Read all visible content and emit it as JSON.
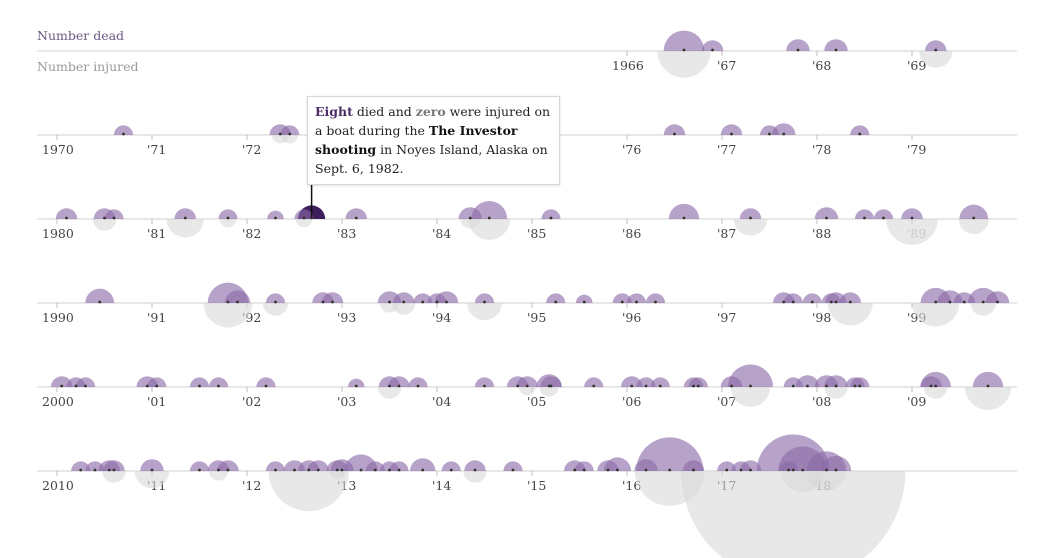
{
  "legend": {
    "dead_label": "Number dead",
    "injured_label": "Number injured"
  },
  "tooltip": {
    "dead_count": "Eight",
    "text_1": " died and ",
    "injured_count": "zero",
    "text_2": " were injured on a boat during the ",
    "event_name": "The Investor shooting",
    "text_3": " in Noyes Island, Alaska on Sept. 6, 1982."
  },
  "colors": {
    "dead": "#8a6aa8",
    "injured": "#d8d8d8",
    "highlight": "#3d1f5c",
    "axis": "#d0d0d0",
    "tick_text": "#444444"
  },
  "chart_data": {
    "type": "scatter",
    "encoding": "bubble timeline; circle area proportional to count; dead drawn above baseline, injured below",
    "rows": [
      {
        "decade": 1960,
        "first_year": 1966,
        "tick_labels": [
          "1966",
          "'67",
          "'68",
          "'69"
        ]
      },
      {
        "decade": 1970,
        "first_year": 1970,
        "tick_labels": [
          "1970",
          "'71",
          "'72",
          "'73",
          "'74",
          "'75",
          "'76",
          "'77",
          "'78",
          "'79"
        ]
      },
      {
        "decade": 1980,
        "first_year": 1980,
        "tick_labels": [
          "1980",
          "'81",
          "'82",
          "'83",
          "'84",
          "'85",
          "'86",
          "'87",
          "'88",
          "'89"
        ]
      },
      {
        "decade": 1990,
        "first_year": 1990,
        "tick_labels": [
          "1990",
          "'91",
          "'92",
          "'93",
          "'94",
          "'95",
          "'96",
          "'97",
          "'98",
          "'99"
        ]
      },
      {
        "decade": 2000,
        "first_year": 2000,
        "tick_labels": [
          "2000",
          "'01",
          "'02",
          "'03",
          "'04",
          "'05",
          "'06",
          "'07",
          "'08",
          "'09"
        ]
      },
      {
        "decade": 2010,
        "first_year": 2010,
        "tick_labels": [
          "2010",
          "'11",
          "'12",
          "'13",
          "'14",
          "'15",
          "'16",
          "'17",
          "'18"
        ]
      }
    ],
    "events": [
      {
        "year": 1966.6,
        "dead": 18,
        "injured": 31
      },
      {
        "year": 1966.9,
        "dead": 5,
        "injured": 0
      },
      {
        "year": 1967.8,
        "dead": 6,
        "injured": 0
      },
      {
        "year": 1968.2,
        "dead": 6,
        "injured": 0
      },
      {
        "year": 1969.25,
        "dead": 5,
        "injured": 12
      },
      {
        "year": 1970.7,
        "dead": 4,
        "injured": 0
      },
      {
        "year": 1972.35,
        "dead": 5,
        "injured": 3
      },
      {
        "year": 1972.45,
        "dead": 4,
        "injured": 3
      },
      {
        "year": 1976.5,
        "dead": 5,
        "injured": 0
      },
      {
        "year": 1977.1,
        "dead": 5,
        "injured": 0
      },
      {
        "year": 1977.5,
        "dead": 4,
        "injured": 0
      },
      {
        "year": 1977.65,
        "dead": 6,
        "injured": 0
      },
      {
        "year": 1978.45,
        "dead": 4,
        "injured": 0
      },
      {
        "year": 1980.1,
        "dead": 5,
        "injured": 0
      },
      {
        "year": 1980.5,
        "dead": 5,
        "injured": 6
      },
      {
        "year": 1980.6,
        "dead": 4,
        "injured": 0
      },
      {
        "year": 1981.35,
        "dead": 5,
        "injured": 15
      },
      {
        "year": 1981.8,
        "dead": 4,
        "injured": 3
      },
      {
        "year": 1982.3,
        "dead": 3,
        "injured": 0
      },
      {
        "year": 1982.6,
        "dead": 4,
        "injured": 3
      },
      {
        "year": 1982.68,
        "dead": 8,
        "injured": 0,
        "highlight": true
      },
      {
        "year": 1983.15,
        "dead": 5,
        "injured": 0
      },
      {
        "year": 1984.35,
        "dead": 6,
        "injured": 4
      },
      {
        "year": 1984.55,
        "dead": 14,
        "injured": 19
      },
      {
        "year": 1985.2,
        "dead": 4,
        "injured": 0
      },
      {
        "year": 1986.6,
        "dead": 10,
        "injured": 0
      },
      {
        "year": 1987.3,
        "dead": 5,
        "injured": 12
      },
      {
        "year": 1988.1,
        "dead": 6,
        "injured": 0
      },
      {
        "year": 1988.5,
        "dead": 4,
        "injured": 0
      },
      {
        "year": 1988.7,
        "dead": 4,
        "injured": 0
      },
      {
        "year": 1989.0,
        "dead": 5,
        "injured": 29
      },
      {
        "year": 1989.65,
        "dead": 9,
        "injured": 10
      },
      {
        "year": 1990.45,
        "dead": 9,
        "injured": 0
      },
      {
        "year": 1991.8,
        "dead": 18,
        "injured": 26
      },
      {
        "year": 1991.9,
        "dead": 7,
        "injured": 0
      },
      {
        "year": 1992.3,
        "dead": 4,
        "injured": 7
      },
      {
        "year": 1992.8,
        "dead": 5,
        "injured": 0
      },
      {
        "year": 1992.9,
        "dead": 5,
        "injured": 0
      },
      {
        "year": 1993.5,
        "dead": 6,
        "injured": 4
      },
      {
        "year": 1993.65,
        "dead": 5,
        "injured": 6
      },
      {
        "year": 1993.85,
        "dead": 4,
        "injured": 0
      },
      {
        "year": 1994.0,
        "dead": 4,
        "injured": 0
      },
      {
        "year": 1994.1,
        "dead": 6,
        "injured": 0
      },
      {
        "year": 1994.5,
        "dead": 4,
        "injured": 13
      },
      {
        "year": 1995.25,
        "dead": 4,
        "injured": 0
      },
      {
        "year": 1995.55,
        "dead": 3,
        "injured": 0
      },
      {
        "year": 1995.95,
        "dead": 4,
        "injured": 0
      },
      {
        "year": 1996.1,
        "dead": 4,
        "injured": 0
      },
      {
        "year": 1996.3,
        "dead": 4,
        "injured": 0
      },
      {
        "year": 1997.65,
        "dead": 5,
        "injured": 0
      },
      {
        "year": 1997.75,
        "dead": 4,
        "injured": 0
      },
      {
        "year": 1997.95,
        "dead": 4,
        "injured": 0
      },
      {
        "year": 1998.15,
        "dead": 4,
        "injured": 0
      },
      {
        "year": 1998.2,
        "dead": 5,
        "injured": 0
      },
      {
        "year": 1998.35,
        "dead": 5,
        "injured": 22
      },
      {
        "year": 1999.25,
        "dead": 10,
        "injured": 24
      },
      {
        "year": 1999.4,
        "dead": 7,
        "injured": 0
      },
      {
        "year": 1999.55,
        "dead": 5,
        "injured": 0
      },
      {
        "year": 1999.75,
        "dead": 10,
        "injured": 7
      },
      {
        "year": 1999.9,
        "dead": 6,
        "injured": 0
      },
      {
        "year": 2000.05,
        "dead": 5,
        "injured": 0
      },
      {
        "year": 2000.2,
        "dead": 4,
        "injured": 0
      },
      {
        "year": 2000.3,
        "dead": 4,
        "injured": 0
      },
      {
        "year": 2000.95,
        "dead": 5,
        "injured": 0
      },
      {
        "year": 2001.05,
        "dead": 4,
        "injured": 0
      },
      {
        "year": 2001.5,
        "dead": 4,
        "injured": 0
      },
      {
        "year": 2001.7,
        "dead": 4,
        "injured": 0
      },
      {
        "year": 2002.2,
        "dead": 4,
        "injured": 0
      },
      {
        "year": 2003.15,
        "dead": 3,
        "injured": 0
      },
      {
        "year": 2003.5,
        "dead": 5,
        "injured": 6
      },
      {
        "year": 2003.6,
        "dead": 5,
        "injured": 0
      },
      {
        "year": 2003.8,
        "dead": 4,
        "injured": 0
      },
      {
        "year": 2004.5,
        "dead": 4,
        "injured": 0
      },
      {
        "year": 2004.85,
        "dead": 5,
        "injured": 0
      },
      {
        "year": 2004.95,
        "dead": 5,
        "injured": 3
      },
      {
        "year": 2005.18,
        "dead": 7,
        "injured": 4
      },
      {
        "year": 2005.2,
        "dead": 5,
        "injured": 0
      },
      {
        "year": 2005.65,
        "dead": 4,
        "injured": 0
      },
      {
        "year": 2006.05,
        "dead": 5,
        "injured": 0
      },
      {
        "year": 2006.2,
        "dead": 4,
        "injured": 0
      },
      {
        "year": 2006.35,
        "dead": 4,
        "injured": 0
      },
      {
        "year": 2006.7,
        "dead": 4,
        "injured": 0
      },
      {
        "year": 2006.75,
        "dead": 4,
        "injured": 0
      },
      {
        "year": 2007.1,
        "dead": 5,
        "injured": 0
      },
      {
        "year": 2007.3,
        "dead": 22,
        "injured": 17
      },
      {
        "year": 2007.75,
        "dead": 4,
        "injured": 0
      },
      {
        "year": 2007.9,
        "dead": 6,
        "injured": 0
      },
      {
        "year": 2008.1,
        "dead": 6,
        "injured": 0
      },
      {
        "year": 2008.2,
        "dead": 6,
        "injured": 6
      },
      {
        "year": 2008.4,
        "dead": 4,
        "injured": 0
      },
      {
        "year": 2008.45,
        "dead": 4,
        "injured": 0
      },
      {
        "year": 2009.2,
        "dead": 5,
        "injured": 0
      },
      {
        "year": 2009.25,
        "dead": 10,
        "injured": 6
      },
      {
        "year": 2009.8,
        "dead": 10,
        "injured": 23
      },
      {
        "year": 2010.25,
        "dead": 4,
        "injured": 0
      },
      {
        "year": 2010.4,
        "dead": 4,
        "injured": 0
      },
      {
        "year": 2010.55,
        "dead": 5,
        "injured": 0
      },
      {
        "year": 2010.6,
        "dead": 5,
        "injured": 6
      },
      {
        "year": 2011.0,
        "dead": 6,
        "injured": 13
      },
      {
        "year": 2011.5,
        "dead": 4,
        "injured": 0
      },
      {
        "year": 2011.7,
        "dead": 5,
        "injured": 4
      },
      {
        "year": 2011.8,
        "dead": 5,
        "injured": 0
      },
      {
        "year": 2012.3,
        "dead": 4,
        "injured": 0
      },
      {
        "year": 2012.5,
        "dead": 5,
        "injured": 0
      },
      {
        "year": 2012.65,
        "dead": 5,
        "injured": 70
      },
      {
        "year": 2012.75,
        "dead": 5,
        "injured": 0
      },
      {
        "year": 2012.95,
        "dead": 5,
        "injured": 3
      },
      {
        "year": 2013.0,
        "dead": 6,
        "injured": 0
      },
      {
        "year": 2013.2,
        "dead": 12,
        "injured": 0
      },
      {
        "year": 2013.35,
        "dead": 4,
        "injured": 0
      },
      {
        "year": 2013.5,
        "dead": 4,
        "injured": 0
      },
      {
        "year": 2013.6,
        "dead": 4,
        "injured": 0
      },
      {
        "year": 2013.85,
        "dead": 7,
        "injured": 0
      },
      {
        "year": 2014.15,
        "dead": 4,
        "injured": 0
      },
      {
        "year": 2014.4,
        "dead": 5,
        "injured": 6
      },
      {
        "year": 2014.8,
        "dead": 4,
        "injured": 0
      },
      {
        "year": 2015.45,
        "dead": 5,
        "injured": 0
      },
      {
        "year": 2015.55,
        "dead": 4,
        "injured": 0
      },
      {
        "year": 2015.8,
        "dead": 5,
        "injured": 0
      },
      {
        "year": 2015.9,
        "dead": 8,
        "injured": 0
      },
      {
        "year": 2016.2,
        "dead": 6,
        "injured": 0
      },
      {
        "year": 2016.45,
        "dead": 49,
        "injured": 53
      },
      {
        "year": 2016.7,
        "dead": 5,
        "injured": 0
      },
      {
        "year": 2017.05,
        "dead": 4,
        "injured": 0
      },
      {
        "year": 2017.2,
        "dead": 4,
        "injured": 0
      },
      {
        "year": 2017.3,
        "dead": 5,
        "injured": 0
      },
      {
        "year": 2017.7,
        "dead": 4,
        "injured": 0
      },
      {
        "year": 2017.75,
        "dead": 58,
        "injured": 546
      },
      {
        "year": 2017.85,
        "dead": 26,
        "injured": 20
      },
      {
        "year": 2018.1,
        "dead": 17,
        "injured": 17
      },
      {
        "year": 2018.2,
        "dead": 10,
        "injured": 0
      }
    ]
  }
}
